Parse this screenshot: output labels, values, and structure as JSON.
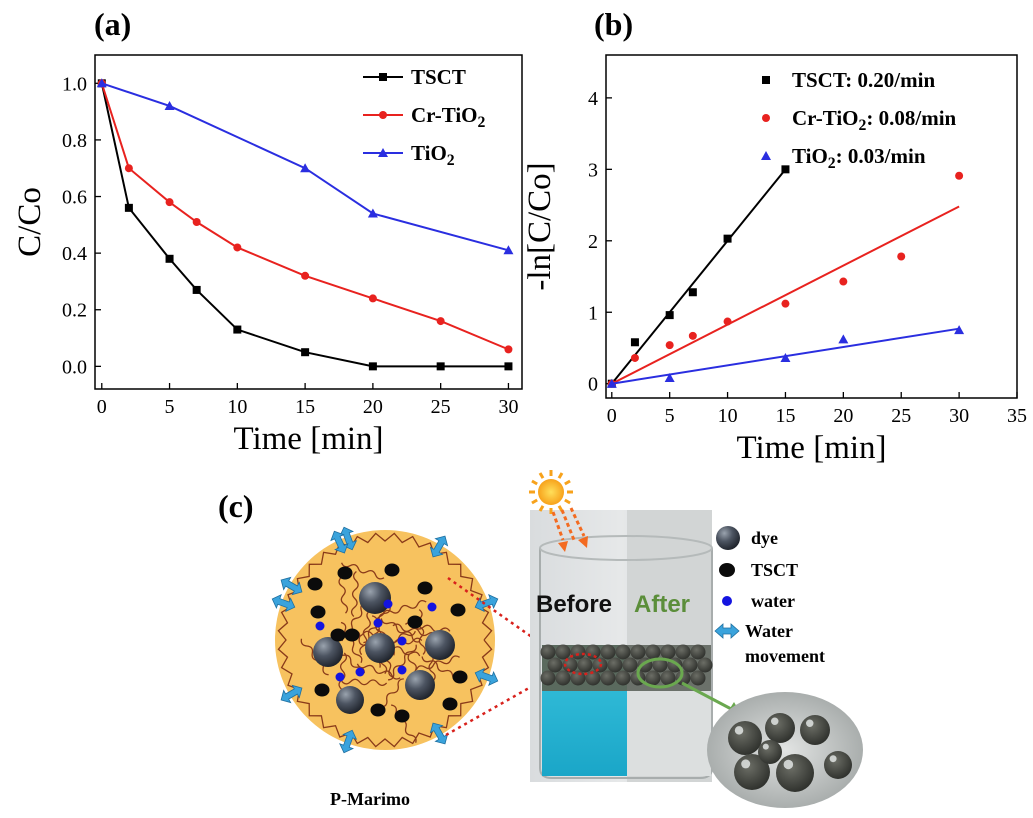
{
  "panels": {
    "a": "(a)",
    "b": "(b)",
    "c": "(c)"
  },
  "colors": {
    "tsct": "#000000",
    "cr_tio2": "#e8221f",
    "tio2": "#2a2ee0",
    "bead_fill": "#f7c25f",
    "arrow": "#3aa3dc",
    "after_text": "#5b8e3a"
  },
  "chart_data": [
    {
      "type": "line",
      "panel": "a",
      "xlabel": "Time [min]",
      "ylabel": "C/Co",
      "xlim": [
        -0.5,
        31
      ],
      "ylim": [
        -0.08,
        1.1
      ],
      "xticks": [
        0,
        5,
        10,
        15,
        20,
        25,
        30
      ],
      "yticks": [
        0.0,
        0.2,
        0.4,
        0.6,
        0.8,
        1.0
      ],
      "xtick_labels": [
        "0",
        "5",
        "10",
        "15",
        "20",
        "25",
        "30"
      ],
      "ytick_labels": [
        "0.0",
        "0.2",
        "0.4",
        "0.6",
        "0.8",
        "1.0"
      ],
      "legend_position": "top-right",
      "series": [
        {
          "name": "TSCT",
          "marker": "square",
          "color": "#000000",
          "x": [
            0,
            2,
            5,
            7,
            10,
            15,
            20,
            25,
            30
          ],
          "y": [
            1.0,
            0.56,
            0.38,
            0.27,
            0.13,
            0.05,
            0.0,
            0.0,
            0.0
          ]
        },
        {
          "name": "Cr-TiO2",
          "marker": "circle",
          "color": "#e8221f",
          "x": [
            0,
            2,
            5,
            7,
            10,
            15,
            20,
            25,
            30
          ],
          "y": [
            1.0,
            0.7,
            0.58,
            0.51,
            0.42,
            0.32,
            0.24,
            0.16,
            0.06
          ]
        },
        {
          "name": "TiO2",
          "marker": "triangle",
          "color": "#2a2ee0",
          "x": [
            0,
            5,
            15,
            20,
            30
          ],
          "y": [
            1.0,
            0.92,
            0.7,
            0.54,
            0.41
          ]
        }
      ]
    },
    {
      "type": "scatter",
      "panel": "b",
      "xlabel": "Time [min]",
      "ylabel": "-ln[C/Co]",
      "xlim": [
        -0.5,
        35
      ],
      "ylim": [
        -0.2,
        4.6
      ],
      "xticks": [
        0,
        5,
        10,
        15,
        20,
        25,
        30,
        35
      ],
      "yticks": [
        0,
        1,
        2,
        3,
        4
      ],
      "xtick_labels": [
        "0",
        "5",
        "10",
        "15",
        "20",
        "25",
        "30",
        "35"
      ],
      "ytick_labels": [
        "0",
        "1",
        "2",
        "3",
        "4"
      ],
      "legend_position": "top-right",
      "series": [
        {
          "name": "TSCT: 0.20/min",
          "marker": "square",
          "color": "#000000",
          "x": [
            0,
            2,
            5,
            7,
            10,
            15
          ],
          "y": [
            0.0,
            0.58,
            0.96,
            1.28,
            2.03,
            3.0
          ],
          "fit": {
            "x": [
              0,
              15
            ],
            "y": [
              0.0,
              3.0
            ]
          }
        },
        {
          "name": "Cr-TiO2: 0.08/min",
          "marker": "circle",
          "color": "#e8221f",
          "x": [
            0,
            2,
            5,
            7,
            10,
            15,
            20,
            25,
            30
          ],
          "y": [
            0.0,
            0.36,
            0.54,
            0.67,
            0.87,
            1.12,
            1.43,
            1.78,
            2.91
          ],
          "fit": {
            "x": [
              0,
              30
            ],
            "y": [
              0.0,
              2.48
            ]
          }
        },
        {
          "name": "TiO2: 0.03/min",
          "marker": "triangle",
          "color": "#2a2ee0",
          "x": [
            0,
            5,
            15,
            20,
            30
          ],
          "y": [
            0.0,
            0.08,
            0.36,
            0.62,
            0.75
          ],
          "fit": {
            "x": [
              0,
              30
            ],
            "y": [
              0.0,
              0.77
            ]
          }
        }
      ]
    }
  ],
  "schematic": {
    "caption": "P-Marimo",
    "before": "Before",
    "after": "After",
    "legend": [
      {
        "label": "dye",
        "icon": "dye-sphere-icon"
      },
      {
        "label": "TSCT",
        "icon": "tsct-dot-icon"
      },
      {
        "label": "water",
        "icon": "water-dot-icon"
      },
      {
        "label": "Water",
        "icon": "double-arrow-icon"
      },
      {
        "label": "movement",
        "icon": ""
      }
    ]
  }
}
